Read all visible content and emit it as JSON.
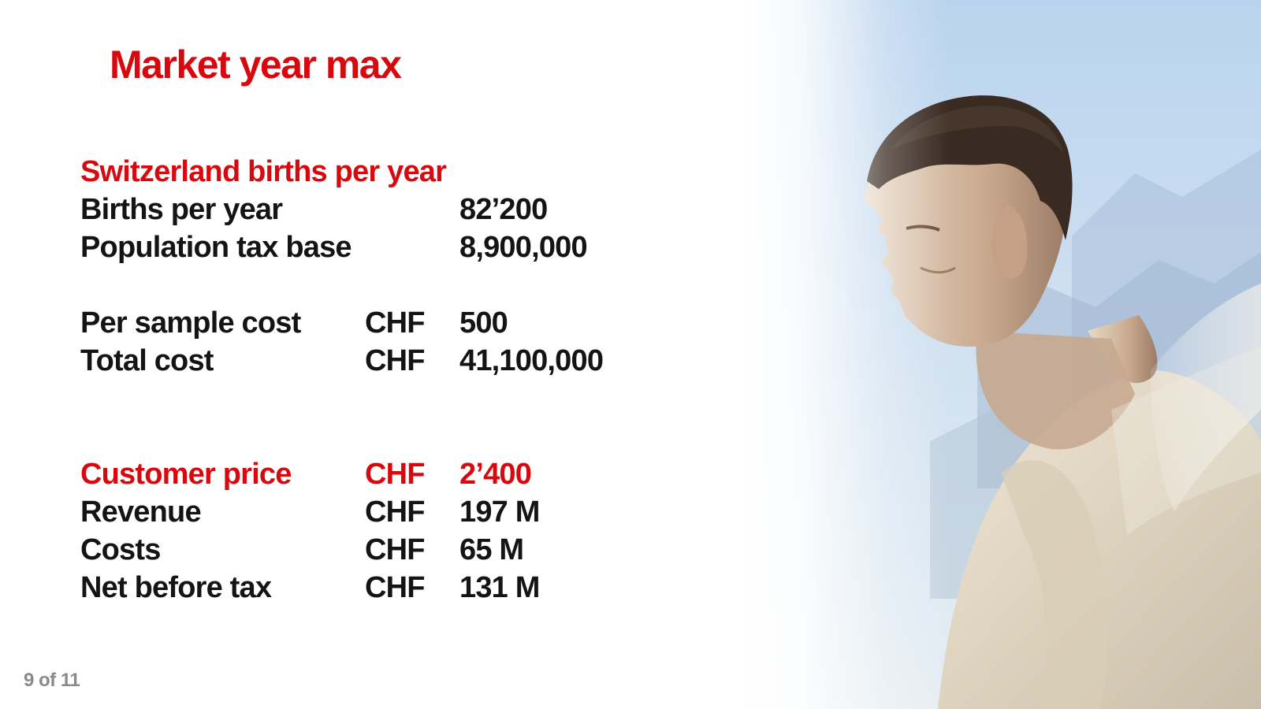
{
  "slide": {
    "title": "Market year max",
    "accent_color": "#d7090f",
    "text_color": "#141414",
    "sections": {
      "births": {
        "heading": "Switzerland births per year",
        "rows": [
          {
            "label": "Births per year",
            "currency": "",
            "value": "82’200"
          },
          {
            "label": "Population tax base",
            "currency": "",
            "value": "8,900,000"
          }
        ]
      },
      "cost": {
        "rows": [
          {
            "label": "Per sample cost",
            "currency": "CHF",
            "value": "500"
          },
          {
            "label": "Total cost",
            "currency": "CHF",
            "value": "41,100,000"
          }
        ]
      },
      "pricing": {
        "highlight": {
          "label": "Customer price",
          "currency": "CHF",
          "value": "2’400"
        },
        "rows": [
          {
            "label": "Revenue",
            "currency": "CHF",
            "value": "197 M"
          },
          {
            "label": "Costs",
            "currency": "CHF",
            "value": "65 M"
          },
          {
            "label": "Net before tax",
            "currency": "CHF",
            "value": "131 M"
          }
        ]
      }
    },
    "photo_icon": "man-profile-photo",
    "page_indicator": "9 of 11"
  }
}
